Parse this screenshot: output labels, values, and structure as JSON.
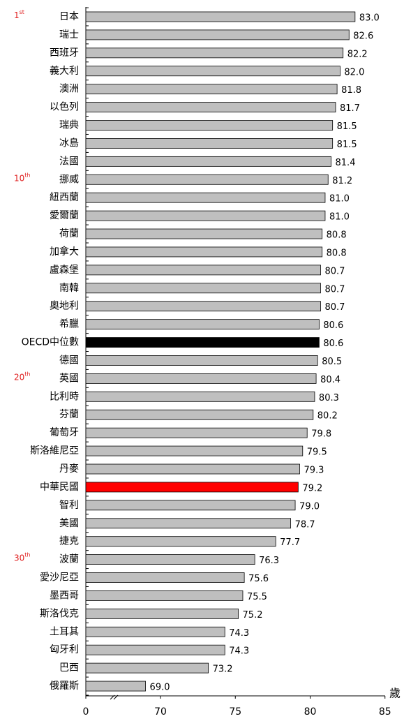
{
  "chart_data": {
    "type": "bar",
    "orientation": "horizontal",
    "categories": [
      "日本",
      "瑞士",
      "西班牙",
      "義大利",
      "澳洲",
      "以色列",
      "瑞典",
      "冰島",
      "法國",
      "挪威",
      "紐西蘭",
      "愛爾蘭",
      "荷蘭",
      "加拿大",
      "盧森堡",
      "南韓",
      "奧地利",
      "希臘",
      "OECD中位數",
      "德國",
      "英國",
      "比利時",
      "芬蘭",
      "葡萄牙",
      "斯洛維尼亞",
      "丹麥",
      "中華民國",
      "智利",
      "美國",
      "捷克",
      "波蘭",
      "愛沙尼亞",
      "墨西哥",
      "斯洛伐克",
      "土耳其",
      "匈牙利",
      "巴西",
      "俄羅斯"
    ],
    "values": [
      83.0,
      82.6,
      82.2,
      82.0,
      81.8,
      81.7,
      81.5,
      81.5,
      81.4,
      81.2,
      81.0,
      81.0,
      80.8,
      80.8,
      80.7,
      80.7,
      80.7,
      80.6,
      80.6,
      80.5,
      80.4,
      80.3,
      80.2,
      79.8,
      79.5,
      79.3,
      79.2,
      79.0,
      78.7,
      77.7,
      76.3,
      75.6,
      75.5,
      75.2,
      74.3,
      74.3,
      73.2,
      69.0
    ],
    "value_labels": [
      "83.0",
      "82.6",
      "82.2",
      "82.0",
      "81.8",
      "81.7",
      "81.5",
      "81.5",
      "81.4",
      "81.2",
      "81.0",
      "81.0",
      "80.8",
      "80.8",
      "80.7",
      "80.7",
      "80.7",
      "80.6",
      "80.6",
      "80.5",
      "80.4",
      "80.3",
      "80.2",
      "79.8",
      "79.5",
      "79.3",
      "79.2",
      "79.0",
      "78.7",
      "77.7",
      "76.3",
      "75.6",
      "75.5",
      "75.2",
      "74.3",
      "74.3",
      "73.2",
      "69.0"
    ],
    "colors": [
      "#bfbfbf",
      "#bfbfbf",
      "#bfbfbf",
      "#bfbfbf",
      "#bfbfbf",
      "#bfbfbf",
      "#bfbfbf",
      "#bfbfbf",
      "#bfbfbf",
      "#bfbfbf",
      "#bfbfbf",
      "#bfbfbf",
      "#bfbfbf",
      "#bfbfbf",
      "#bfbfbf",
      "#bfbfbf",
      "#bfbfbf",
      "#bfbfbf",
      "#000000",
      "#bfbfbf",
      "#bfbfbf",
      "#bfbfbf",
      "#bfbfbf",
      "#bfbfbf",
      "#bfbfbf",
      "#bfbfbf",
      "#ff0000",
      "#bfbfbf",
      "#bfbfbf",
      "#bfbfbf",
      "#bfbfbf",
      "#bfbfbf",
      "#bfbfbf",
      "#bfbfbf",
      "#bfbfbf",
      "#bfbfbf",
      "#bfbfbf",
      "#bfbfbf"
    ],
    "ranks": [
      {
        "number": "1",
        "suffix": "st"
      },
      null,
      null,
      null,
      null,
      null,
      null,
      null,
      null,
      {
        "number": "10",
        "suffix": "th"
      },
      null,
      null,
      null,
      null,
      null,
      null,
      null,
      null,
      null,
      null,
      {
        "number": "20",
        "suffix": "th"
      },
      null,
      null,
      null,
      null,
      null,
      null,
      null,
      null,
      null,
      {
        "number": "30",
        "suffix": "th"
      },
      null,
      null,
      null,
      null,
      null,
      null,
      null
    ],
    "xlim": [
      0,
      85
    ],
    "x_break": [
      0,
      70
    ],
    "xticks": [
      0,
      70,
      75,
      80,
      85
    ],
    "x_unit": "歲"
  }
}
